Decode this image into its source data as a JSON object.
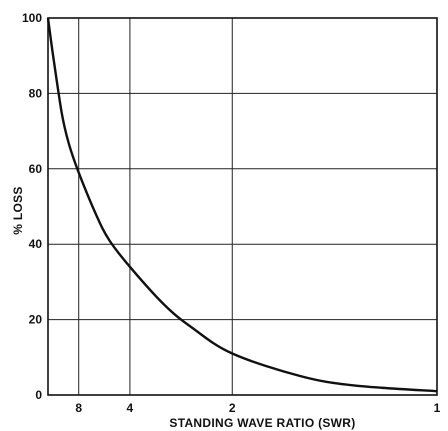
{
  "chart_data": {
    "type": "line",
    "title": "",
    "xlabel": "STANDING WAVE RATIO (SWR)",
    "ylabel": "% LOSS",
    "x_scale": "reciprocal",
    "xlim": [
      20,
      1
    ],
    "ylim": [
      0,
      100
    ],
    "x_ticks": [
      8,
      4,
      2,
      1
    ],
    "x_tick_labels": [
      "8",
      "4",
      "2",
      "1"
    ],
    "y_ticks": [
      0,
      20,
      40,
      60,
      80,
      100
    ],
    "y_tick_labels": [
      "0",
      "20",
      "40",
      "60",
      "80",
      "100"
    ],
    "grid": true,
    "series": [
      {
        "x": [
          20,
          16,
          12,
          10,
          8,
          6,
          5,
          4,
          3,
          2.5,
          2,
          1.5,
          1.25,
          1
        ],
        "y": [
          100,
          90,
          75,
          67,
          59,
          48,
          41,
          34,
          24,
          18,
          11,
          5,
          2.5,
          1
        ]
      }
    ]
  }
}
